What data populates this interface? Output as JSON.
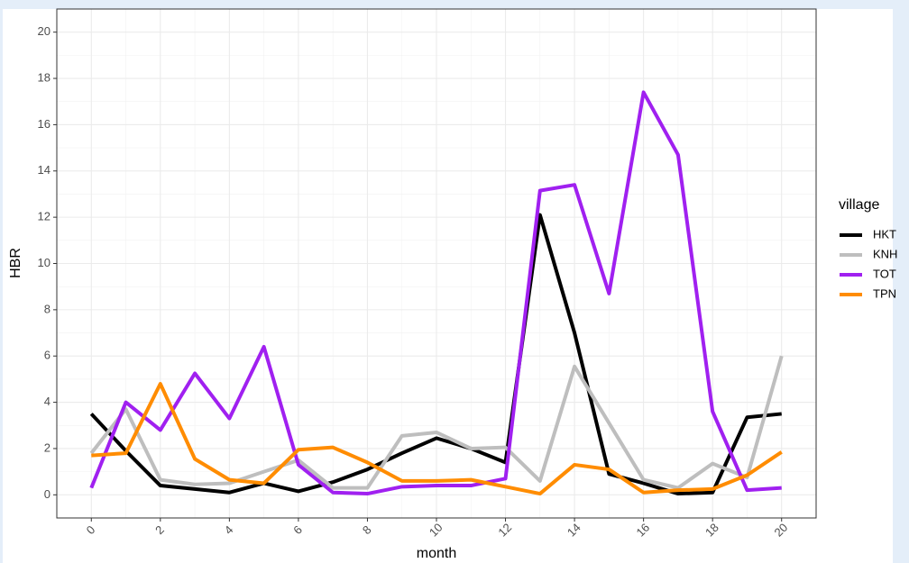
{
  "chart_data": {
    "type": "line",
    "x_label": "month",
    "y_label": "HBR",
    "legend_title": "village",
    "x": [
      0,
      1,
      2,
      3,
      4,
      5,
      6,
      7,
      8,
      9,
      10,
      11,
      12,
      13,
      14,
      15,
      16,
      17,
      18,
      19,
      20
    ],
    "series": [
      {
        "name": "HKT",
        "color": "#000000",
        "values": [
          3.5,
          1.9,
          0.4,
          0.25,
          0.1,
          0.5,
          0.15,
          0.55,
          1.1,
          1.8,
          2.45,
          2.0,
          1.4,
          12.1,
          7.0,
          0.9,
          0.5,
          0.05,
          0.1,
          3.35,
          3.5
        ]
      },
      {
        "name": "KNH",
        "color": "#bebebe",
        "values": [
          1.8,
          3.7,
          0.65,
          0.45,
          0.5,
          1.0,
          1.5,
          0.3,
          0.3,
          2.55,
          2.7,
          2.0,
          2.05,
          0.6,
          5.55,
          3.1,
          0.65,
          0.3,
          1.35,
          0.75,
          6.0
        ]
      },
      {
        "name": "TOT",
        "color": "#a020f0",
        "values": [
          0.3,
          4.0,
          2.8,
          5.25,
          3.3,
          6.4,
          1.3,
          0.1,
          0.05,
          0.35,
          0.4,
          0.4,
          0.7,
          13.15,
          13.4,
          8.7,
          17.4,
          14.7,
          3.6,
          0.2,
          0.3
        ]
      },
      {
        "name": "TPN",
        "color": "#ff8c00",
        "values": [
          1.7,
          1.8,
          4.8,
          1.55,
          0.65,
          0.5,
          1.95,
          2.05,
          1.4,
          0.6,
          0.6,
          0.65,
          0.35,
          0.05,
          1.3,
          1.1,
          0.1,
          0.2,
          0.25,
          0.85,
          1.85
        ]
      }
    ],
    "xlim": [
      -1,
      21
    ],
    "ylim": [
      -1,
      21
    ],
    "xticks": [
      0,
      2,
      4,
      6,
      8,
      10,
      12,
      14,
      16,
      18,
      20
    ],
    "yticks": [
      0,
      2,
      4,
      6,
      8,
      10,
      12,
      14,
      16,
      18,
      20
    ],
    "grid": true,
    "legend": "right"
  }
}
